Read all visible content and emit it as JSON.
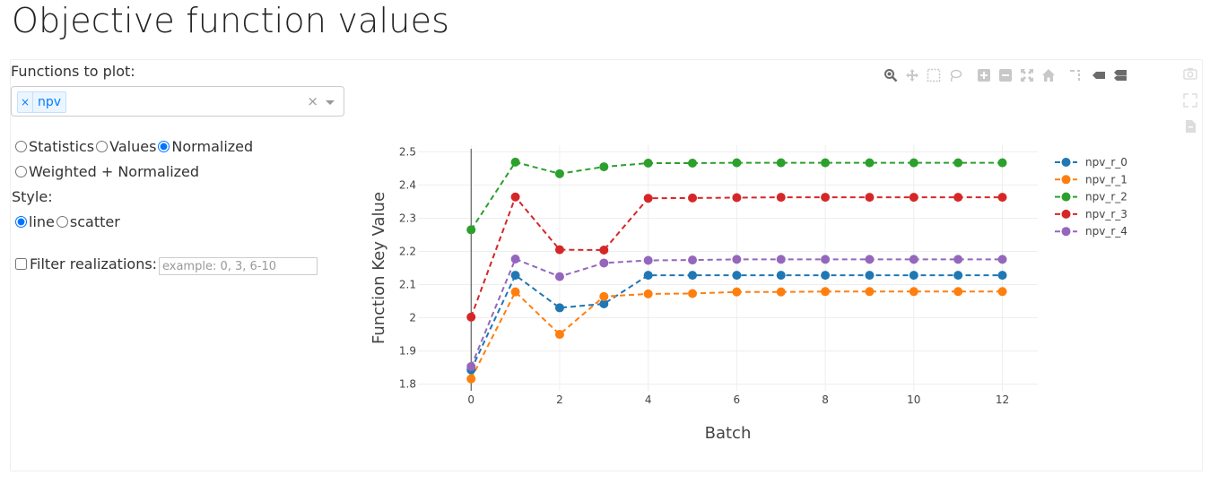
{
  "page": {
    "title": "Objective function values"
  },
  "controls": {
    "functions_label": "Functions to plot:",
    "selected_function": "npv",
    "chip_remove": "×",
    "clear_symbol": "×",
    "mode_options": [
      "Statistics",
      "Values",
      "Normalized",
      "Weighted + Normalized"
    ],
    "mode_selected": "Normalized",
    "style_label": "Style:",
    "style_options": [
      "line",
      "scatter"
    ],
    "style_selected": "line",
    "filter_label": "Filter realizations:",
    "filter_placeholder": "example: 0, 3, 6-10",
    "filter_checked": false
  },
  "modebar": {
    "buttons": [
      "zoom-icon",
      "pan-icon",
      "box-select-icon",
      "lasso-select-icon",
      "zoom-in-icon",
      "zoom-out-icon",
      "autoscale-icon",
      "reset-axes-icon",
      "spike-lines-icon",
      "hover-closest-icon",
      "hover-compare-icon"
    ],
    "side_buttons": [
      "camera-icon",
      "fullscreen-icon",
      "export-icon"
    ]
  },
  "chart_data": {
    "type": "line",
    "xlabel": "Batch",
    "ylabel": "Function Key Value",
    "xlim": [
      -1.2,
      12.8
    ],
    "ylim": [
      1.78,
      2.52
    ],
    "xticks": [
      0,
      2,
      4,
      6,
      8,
      10,
      12
    ],
    "yticks": [
      1.8,
      1.9,
      2,
      2.1,
      2.2,
      2.3,
      2.4,
      2.5
    ],
    "grid": true,
    "legend_position": "top-right",
    "line_style": "dashed",
    "x": [
      0,
      1,
      2,
      3,
      4,
      5,
      6,
      7,
      8,
      9,
      10,
      11,
      12
    ],
    "series": [
      {
        "name": "npv_r_0",
        "color": "#1f77b4",
        "values": [
          1.843,
          2.128,
          2.03,
          2.042,
          2.128,
          2.128,
          2.128,
          2.128,
          2.128,
          2.128,
          2.128,
          2.128,
          2.128
        ]
      },
      {
        "name": "npv_r_1",
        "color": "#ff7f0e",
        "values": [
          1.816,
          2.078,
          1.95,
          2.064,
          2.072,
          2.073,
          2.078,
          2.078,
          2.079,
          2.079,
          2.079,
          2.079,
          2.079
        ]
      },
      {
        "name": "npv_r_2",
        "color": "#2ca02c",
        "values": [
          2.265,
          2.469,
          2.434,
          2.455,
          2.466,
          2.466,
          2.467,
          2.467,
          2.467,
          2.467,
          2.467,
          2.467,
          2.467
        ]
      },
      {
        "name": "npv_r_3",
        "color": "#d62728",
        "values": [
          2.002,
          2.364,
          2.205,
          2.204,
          2.36,
          2.361,
          2.362,
          2.363,
          2.363,
          2.363,
          2.363,
          2.363,
          2.363
        ]
      },
      {
        "name": "npv_r_4",
        "color": "#9467bd",
        "values": [
          1.853,
          2.177,
          2.124,
          2.165,
          2.173,
          2.174,
          2.176,
          2.176,
          2.176,
          2.176,
          2.176,
          2.176,
          2.176
        ]
      }
    ]
  }
}
